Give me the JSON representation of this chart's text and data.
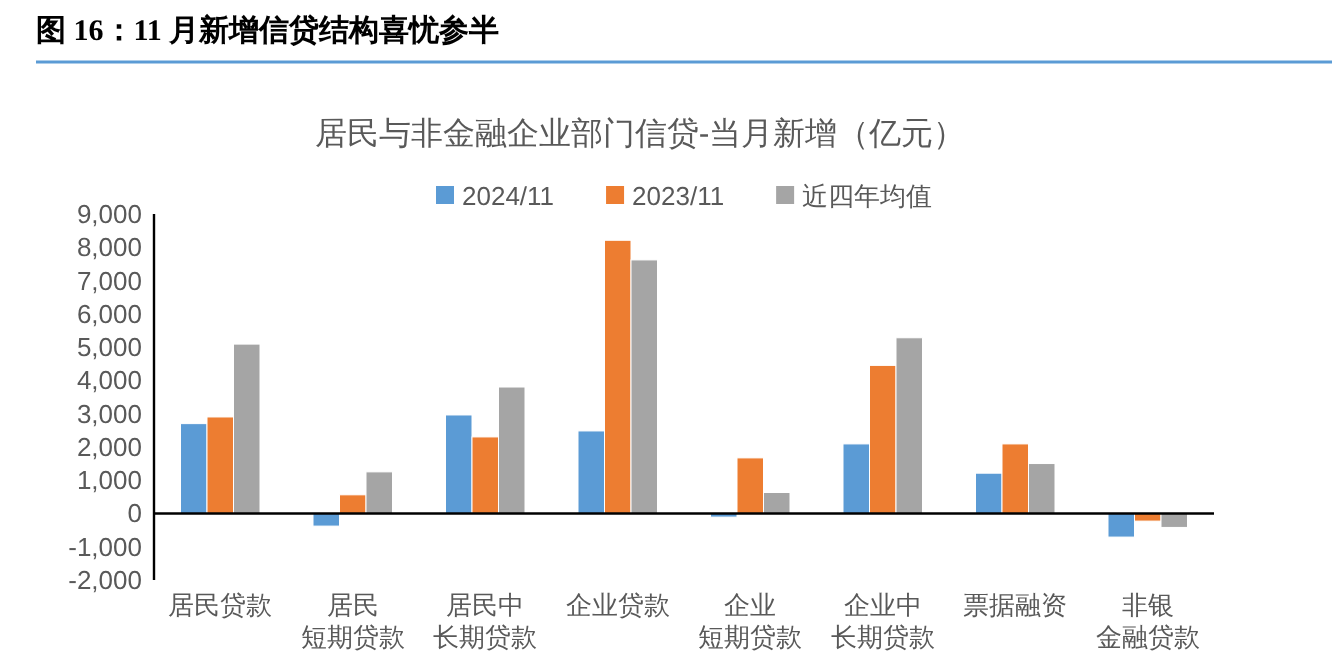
{
  "chart_data": {
    "type": "bar",
    "title": "居民与非金融企业部门信贷-当月新增（亿元）",
    "annotations": [
      "图 16：11 月新增信贷结构喜忧参半"
    ],
    "categories": [
      "居民贷款",
      "居民短期贷款",
      "居民中长期贷款",
      "企业贷款",
      "企业短期贷款",
      "企业中长期贷款",
      "票据融资",
      "非银金融贷款"
    ],
    "series": [
      {
        "name": "2024/11",
        "color": "#5b9bd5",
        "values": [
          2700,
          -380,
          2960,
          2480,
          -110,
          2090,
          1210,
          -710
        ]
      },
      {
        "name": "2023/11",
        "color": "#ed7d31",
        "values": [
          2900,
          560,
          2300,
          8210,
          1670,
          4450,
          2090,
          -230
        ]
      },
      {
        "name": "近四年均值",
        "color": "#a5a5a5",
        "values": [
          5090,
          1250,
          3800,
          7620,
          630,
          5280,
          1500,
          -420
        ]
      }
    ],
    "ylim": [
      -2000,
      9000
    ],
    "yticks": [
      {
        "value": -2000,
        "label": "-2,000"
      },
      {
        "value": -1000,
        "label": "-1,000"
      },
      0,
      {
        "value": 1000,
        "label": "1,000"
      },
      {
        "value": 2000,
        "label": "2,000"
      },
      {
        "value": 3000,
        "label": "3,000"
      },
      {
        "value": 4000,
        "label": "4,000"
      },
      {
        "value": 5000,
        "label": "5,000"
      },
      {
        "value": 6000,
        "label": "6,000"
      },
      {
        "value": 7000,
        "label": "7,000"
      },
      {
        "value": 8000,
        "label": "8,000"
      },
      {
        "value": 9000,
        "label": "9,000"
      }
    ],
    "legend": "top"
  }
}
